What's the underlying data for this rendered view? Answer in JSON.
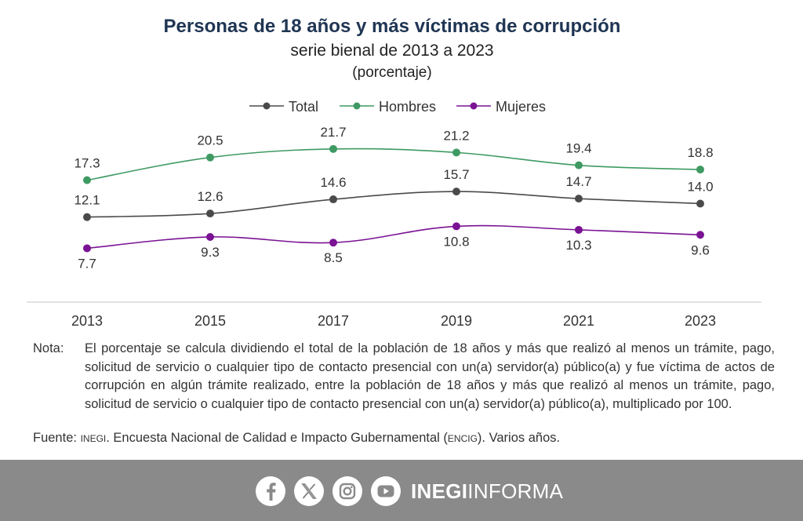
{
  "title": "Personas de 18 años y más víctimas de corrupción",
  "subtitle": "serie bienal de 2013 a 2023",
  "unit": "(porcentaje)",
  "colors": {
    "title": "#1f3553",
    "total": "#4a4a4a",
    "hombres": "#3e9a62",
    "mujeres": "#7a1294",
    "footer": "#8a8a8a"
  },
  "chart_data": {
    "type": "line",
    "title": "Personas de 18 años y más víctimas de corrupción",
    "subtitle": "serie bienal de 2013 a 2023",
    "unit": "(porcentaje)",
    "categories": [
      "2013",
      "2015",
      "2017",
      "2019",
      "2021",
      "2023"
    ],
    "series": [
      {
        "name": "Total",
        "color": "#4a4a4a",
        "values": [
          12.1,
          12.6,
          14.6,
          15.7,
          14.7,
          14.0
        ],
        "label_position": "above"
      },
      {
        "name": "Hombres",
        "color": "#3e9a62",
        "values": [
          17.3,
          20.5,
          21.7,
          21.2,
          19.4,
          18.8
        ],
        "label_position": "above"
      },
      {
        "name": "Mujeres",
        "color": "#7a1294",
        "values": [
          7.7,
          9.3,
          8.5,
          10.8,
          10.3,
          9.6
        ],
        "label_position": "below"
      }
    ],
    "legend": "top-center",
    "grid": false,
    "smooth": true,
    "ylim": [
      2,
      25
    ]
  },
  "note": {
    "label": "Nota:",
    "text": "El porcentaje se calcula dividiendo el total de la población de 18 años y más que realizó al menos un trámite, pago, solicitud de servicio o cualquier tipo de contacto presencial con un(a) servidor(a) público(a) y fue víctima de actos de corrupción en algún trámite realizado, entre la población de 18 años y más que realizó al menos un trámite, pago, solicitud de servicio o cualquier tipo de contacto presencial con un(a) servidor(a) público(a), multiplicado por 100."
  },
  "source": {
    "label": "Fuente:",
    "org": "inegi",
    "text_mid": ". Encuesta Nacional de Calidad e Impacto Gubernamental (",
    "survey": "encig",
    "text_end": "). Varios años."
  },
  "footer": {
    "icons": [
      "facebook-icon",
      "x-icon",
      "instagram-icon",
      "youtube-icon"
    ],
    "brand_bold": "INEGI",
    "brand_light": "INFORMA"
  }
}
